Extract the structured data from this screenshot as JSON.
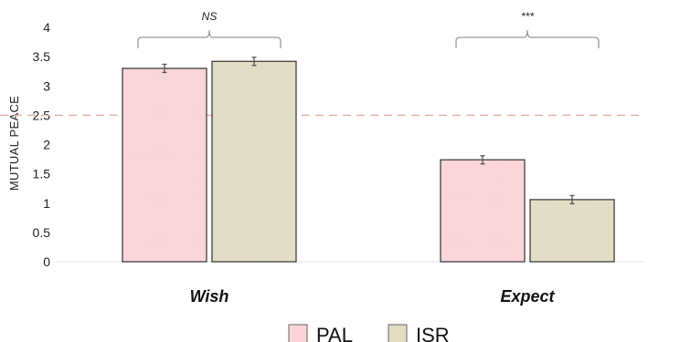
{
  "chart_data": {
    "type": "bar",
    "title": "",
    "xlabel": "",
    "ylabel": "MUTUAL PEACE",
    "ylim": [
      0,
      4
    ],
    "yticks": [
      {
        "value": 0,
        "label": "0"
      },
      {
        "value": 0.5,
        "label": "0.5"
      },
      {
        "value": 1,
        "label": "1"
      },
      {
        "value": 1.5,
        "label": "1.5"
      },
      {
        "value": 2,
        "label": "2"
      },
      {
        "value": 2.5,
        "label": "2.5"
      },
      {
        "value": 3,
        "label": "3"
      },
      {
        "value": 3.5,
        "label": "3.5"
      },
      {
        "value": 4,
        "label": "4"
      }
    ],
    "categories": [
      "Wish",
      "Expect"
    ],
    "series": [
      {
        "name": "PAL",
        "color": "#fad4d8",
        "values": [
          3.3,
          1.74
        ],
        "errors": [
          0.07,
          0.07
        ]
      },
      {
        "name": "ISR",
        "color": "#e2dcc4",
        "values": [
          3.42,
          1.06
        ],
        "errors": [
          0.07,
          0.07
        ]
      }
    ],
    "reference_line": {
      "value": 2.5,
      "color": "#e2b5a9",
      "style": "dashed"
    },
    "significance": [
      "NS",
      "***"
    ],
    "legend": {
      "placement": "bottom-center"
    },
    "grid": false
  }
}
